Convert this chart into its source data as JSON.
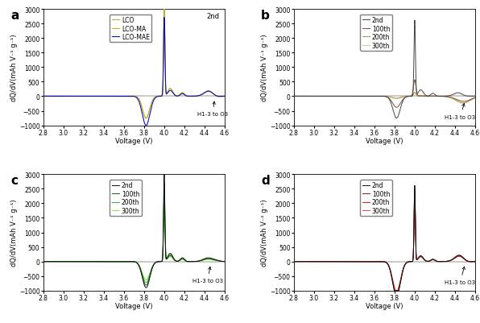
{
  "ylabel": "dQ/dV(mAh V⁻¹ g⁻¹)",
  "xlabel": "Voltage (V)",
  "xlim": [
    2.8,
    4.6
  ],
  "ylim": [
    -1000,
    3000
  ],
  "xticks": [
    2.8,
    3.0,
    3.2,
    3.4,
    3.6,
    3.8,
    4.0,
    4.2,
    4.4,
    4.6
  ],
  "yticks": [
    -1000,
    -500,
    0,
    500,
    1000,
    1500,
    2000,
    2500,
    3000
  ],
  "colors_a": {
    "LCO": "#c8a030",
    "LCO-MA": "#b8b020",
    "LCO-MAE": "#1010bb"
  },
  "colors_b": {
    "2nd": "#444444",
    "100th": "#7a5030",
    "200th": "#b89040",
    "300th": "#d4c888"
  },
  "colors_c": {
    "2nd": "#111111",
    "100th": "#1a6020",
    "200th": "#30b030",
    "300th": "#80ee30"
  },
  "colors_d": {
    "2nd": "#111111",
    "100th": "#882020",
    "200th": "#cc2020",
    "300th": "#ee4444"
  },
  "legend_a": [
    "LCO",
    "LCO-MA",
    "LCO-MAE"
  ],
  "legend_bcd": [
    "2nd",
    "100th",
    "200th",
    "300th"
  ],
  "panel_labels": [
    "a",
    "b",
    "c",
    "d"
  ],
  "annotation_a_text": "2nd",
  "annotation_h13": "H1-3 to O3"
}
